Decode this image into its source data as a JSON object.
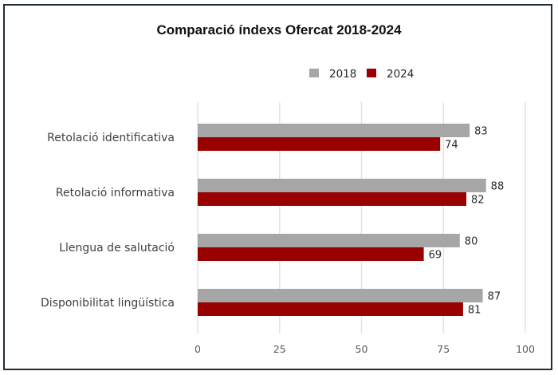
{
  "chart_data": {
    "type": "bar",
    "orientation": "horizontal",
    "title": "Comparació índexs Ofercat 2018-2024",
    "xlabel": "",
    "ylabel": "",
    "categories": [
      "Retolació identificativa",
      "Retolació informativa",
      "Llengua de salutació",
      "Disponibilitat lingüística"
    ],
    "series": [
      {
        "name": "2018",
        "color": "#a6a6a6",
        "values": [
          83,
          88,
          80,
          87
        ]
      },
      {
        "name": "2024",
        "color": "#990000",
        "values": [
          74,
          82,
          69,
          81
        ]
      }
    ],
    "xlim": [
      0,
      100
    ],
    "xticks": [
      0,
      25,
      50,
      75,
      100
    ],
    "xtick_labels": [
      "0",
      "25",
      "50",
      "75",
      "100"
    ],
    "grid": true,
    "legend_position": "top-right",
    "data_labels": true
  }
}
